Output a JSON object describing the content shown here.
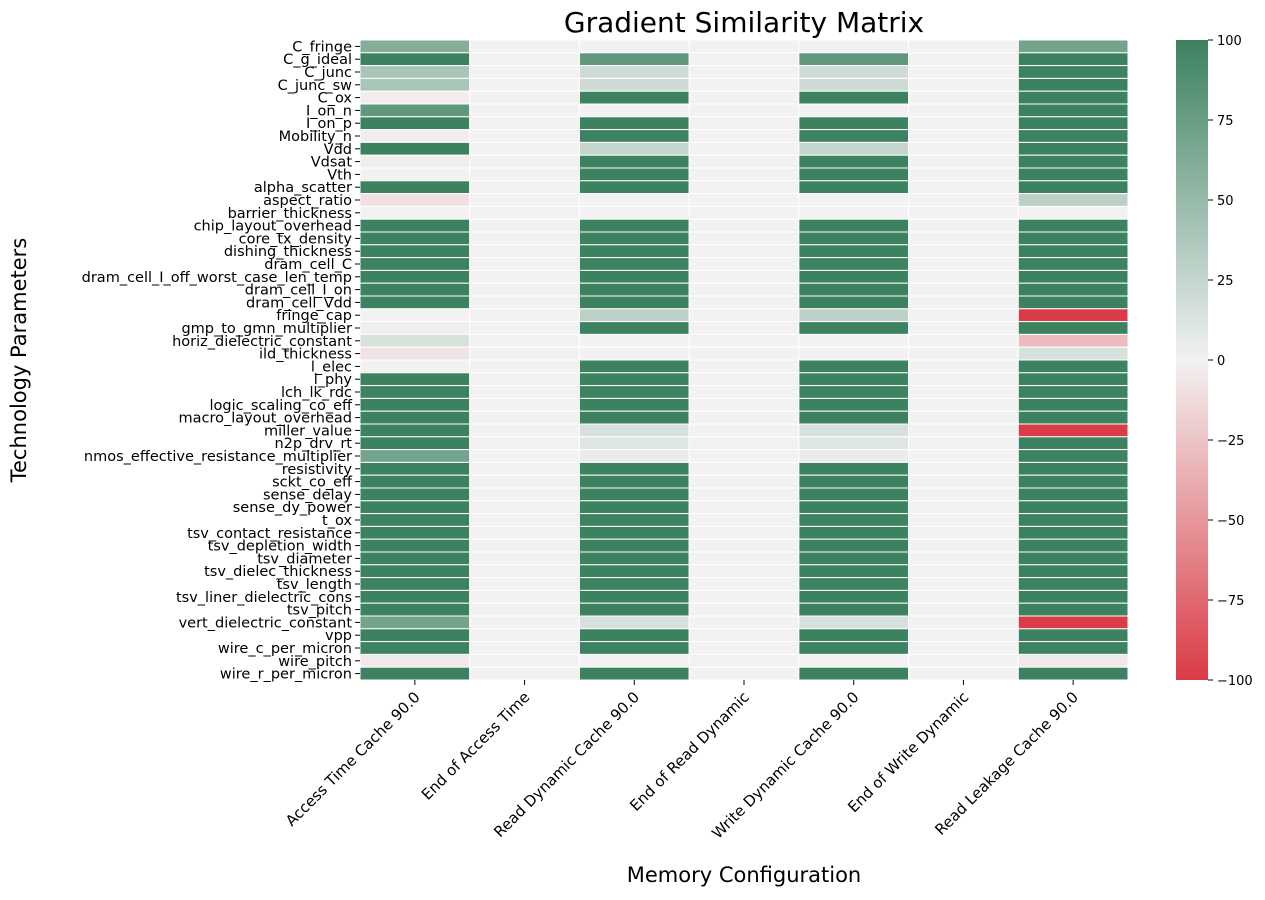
{
  "chart_data": {
    "type": "heatmap",
    "title": "Gradient Similarity Matrix",
    "xlabel": "Memory Configuration",
    "ylabel": "Technology Parameters",
    "columns": [
      "Access Time Cache 90.0",
      "End of Access Time",
      "Read Dynamic Cache 90.0",
      "End of Read Dynamic",
      "Write Dynamic Cache 90.0",
      "End of Write Dynamic",
      "Read Leakage Cache 90.0"
    ],
    "rows": [
      "C_fringe",
      "C_g_ideal",
      "C_junc",
      "C_junc_sw",
      "C_ox",
      "I_on_n",
      "I_on_p",
      "Mobility_n",
      "Vdd",
      "Vdsat",
      "Vth",
      "alpha_scatter",
      "aspect_ratio",
      "barrier_thickness",
      "chip_layout_overhead",
      "core_tx_density",
      "dishing_thickness",
      "dram_cell_C",
      "dram_cell_I_off_worst_case_len_temp",
      "dram_cell_I_on",
      "dram_cell_Vdd",
      "fringe_cap",
      "gmp_to_gmn_multiplier",
      "horiz_dielectric_constant",
      "ild_thickness",
      "l_elec",
      "l_phy",
      "lch_lk_rdc",
      "logic_scaling_co_eff",
      "macro_layout_overhead",
      "miller_value",
      "n2p_drv_rt",
      "nmos_effective_resistance_multiplier",
      "resistivity",
      "sckt_co_eff",
      "sense_delay",
      "sense_dy_power",
      "t_ox",
      "tsv_contact_resistance",
      "tsv_depletion_width",
      "tsv_diameter",
      "tsv_dielec_thickness",
      "tsv_length",
      "tsv_liner_dielectric_cons",
      "tsv_pitch",
      "vert_dielectric_constant",
      "vpp",
      "wire_c_per_micron",
      "wire_pitch",
      "wire_r_per_micron"
    ],
    "values": [
      [
        60,
        0,
        0,
        0,
        0,
        0,
        70
      ],
      [
        100,
        0,
        80,
        0,
        80,
        0,
        100
      ],
      [
        40,
        0,
        20,
        0,
        20,
        0,
        100
      ],
      [
        40,
        0,
        20,
        0,
        20,
        0,
        100
      ],
      [
        -2,
        0,
        100,
        0,
        100,
        0,
        100
      ],
      [
        80,
        0,
        0,
        0,
        0,
        0,
        100
      ],
      [
        100,
        0,
        100,
        0,
        100,
        0,
        100
      ],
      [
        -2,
        0,
        100,
        0,
        100,
        0,
        100
      ],
      [
        100,
        0,
        25,
        0,
        25,
        0,
        100
      ],
      [
        -2,
        0,
        100,
        0,
        100,
        0,
        100
      ],
      [
        0,
        0,
        100,
        0,
        100,
        0,
        100
      ],
      [
        100,
        0,
        100,
        0,
        100,
        0,
        100
      ],
      [
        -10,
        0,
        0,
        0,
        0,
        0,
        30
      ],
      [
        0,
        0,
        0,
        0,
        0,
        0,
        0
      ],
      [
        100,
        0,
        100,
        0,
        100,
        0,
        100
      ],
      [
        100,
        0,
        100,
        0,
        100,
        0,
        100
      ],
      [
        100,
        0,
        100,
        0,
        100,
        0,
        100
      ],
      [
        100,
        0,
        100,
        0,
        100,
        0,
        100
      ],
      [
        100,
        0,
        100,
        0,
        100,
        0,
        100
      ],
      [
        100,
        0,
        100,
        0,
        100,
        0,
        100
      ],
      [
        100,
        0,
        100,
        0,
        100,
        0,
        100
      ],
      [
        0,
        0,
        30,
        0,
        30,
        0,
        -100
      ],
      [
        -2,
        0,
        100,
        0,
        100,
        0,
        100
      ],
      [
        15,
        0,
        0,
        0,
        0,
        0,
        -30
      ],
      [
        -8,
        0,
        0,
        0,
        0,
        0,
        15
      ],
      [
        0,
        0,
        100,
        0,
        100,
        0,
        100
      ],
      [
        100,
        0,
        100,
        0,
        100,
        0,
        100
      ],
      [
        100,
        0,
        100,
        0,
        100,
        0,
        100
      ],
      [
        100,
        0,
        100,
        0,
        100,
        0,
        100
      ],
      [
        100,
        0,
        100,
        0,
        100,
        0,
        100
      ],
      [
        100,
        0,
        15,
        0,
        15,
        0,
        -100
      ],
      [
        100,
        0,
        10,
        0,
        10,
        0,
        100
      ],
      [
        70,
        0,
        5,
        0,
        5,
        0,
        100
      ],
      [
        100,
        0,
        100,
        0,
        100,
        0,
        100
      ],
      [
        100,
        0,
        100,
        0,
        100,
        0,
        100
      ],
      [
        100,
        0,
        100,
        0,
        100,
        0,
        100
      ],
      [
        100,
        0,
        100,
        0,
        100,
        0,
        100
      ],
      [
        100,
        0,
        100,
        0,
        100,
        0,
        100
      ],
      [
        100,
        0,
        100,
        0,
        100,
        0,
        100
      ],
      [
        100,
        0,
        100,
        0,
        100,
        0,
        100
      ],
      [
        100,
        0,
        100,
        0,
        100,
        0,
        100
      ],
      [
        100,
        0,
        100,
        0,
        100,
        0,
        100
      ],
      [
        100,
        0,
        100,
        0,
        100,
        0,
        100
      ],
      [
        100,
        0,
        100,
        0,
        100,
        0,
        100
      ],
      [
        100,
        0,
        100,
        0,
        100,
        0,
        100
      ],
      [
        70,
        0,
        15,
        0,
        15,
        0,
        -100
      ],
      [
        100,
        0,
        100,
        0,
        100,
        0,
        100
      ],
      [
        100,
        0,
        100,
        0,
        100,
        0,
        100
      ],
      [
        -5,
        0,
        0,
        0,
        0,
        0,
        -5
      ],
      [
        100,
        0,
        100,
        0,
        100,
        0,
        100
      ]
    ],
    "vmin": -100,
    "vmax": 100,
    "colorbar_ticks": [
      100,
      75,
      50,
      25,
      0,
      -25,
      -50,
      -75,
      -100
    ],
    "colormap": {
      "low": "#da3b46",
      "mid": "#f2f2f2",
      "high": "#3c8160"
    }
  }
}
